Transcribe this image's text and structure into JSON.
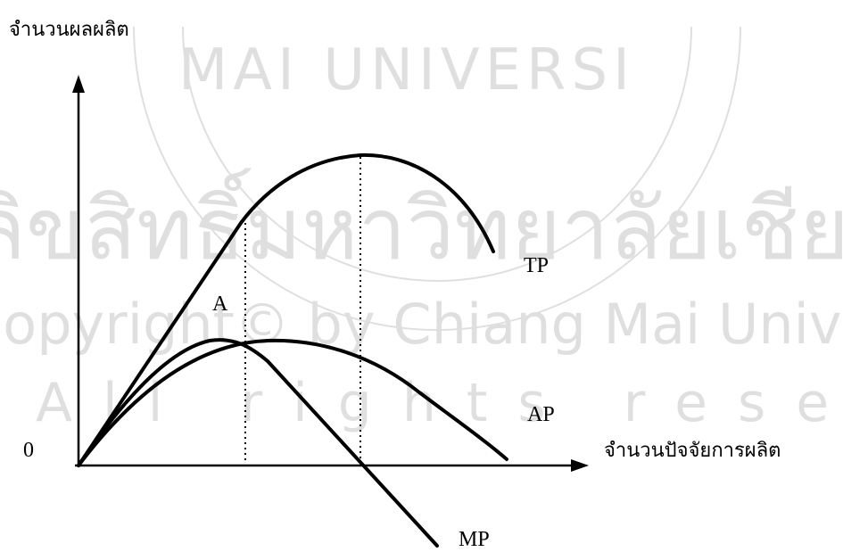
{
  "watermark": {
    "arc_text": "MAI UNIVERSI",
    "thai_line": "ลิขสิทธิ์มหาวิทยาลัยเชียงใหม่",
    "copyright_line": "Copyright© by Chiang Mai University",
    "rights_line": "All rights reserved"
  },
  "axes": {
    "y_label": "จำนวนผลผลิต",
    "x_label": "จำนวนปัจจัยการผลิต",
    "origin_label": "0"
  },
  "curves": {
    "tp_label": "TP",
    "ap_label": "AP",
    "mp_label": "MP"
  },
  "point_label": "A"
}
